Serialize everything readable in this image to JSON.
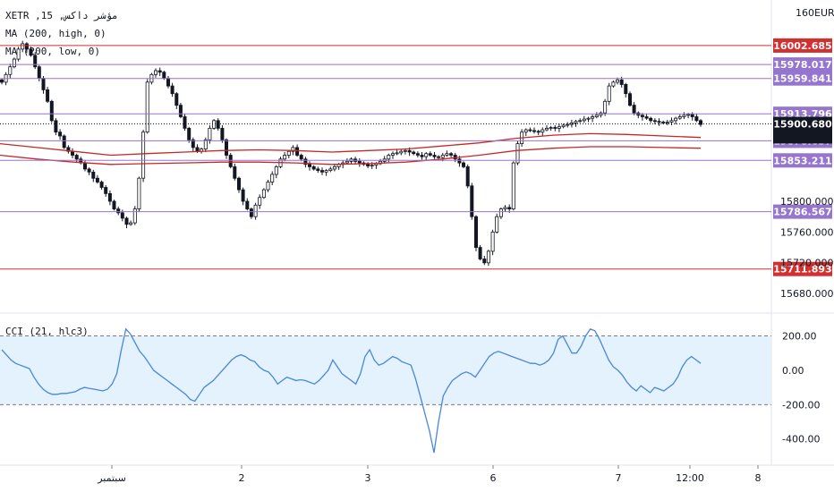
{
  "legend": {
    "symbol_line": "XETR ,15 ,مؤشر داكس",
    "ma_high_line": "MA (200, high, 0)",
    "ma_low_line": "MA (200, low, 0)",
    "cci_line": "CCI (21, hlc3)"
  },
  "currency": "EUR",
  "top_partial_tick": "160",
  "colors": {
    "red_level": "#d32f2f",
    "purple_level": "#9575cd",
    "candle": "#131722",
    "ma": "#c62828",
    "cci_line": "#4a86d8",
    "cci_fill": "#e3f2fd",
    "price_badge": "#131722"
  },
  "horizontal_levels": [
    {
      "value": "16002.685",
      "kind": "red"
    },
    {
      "value": "15978.017",
      "kind": "purple"
    },
    {
      "value": "15959.841",
      "kind": "purple"
    },
    {
      "value": "15913.796",
      "kind": "purple"
    },
    {
      "value": "15878.657",
      "kind": "purple"
    },
    {
      "value": "15853.211",
      "kind": "purple"
    },
    {
      "value": "15786.567",
      "kind": "purple"
    },
    {
      "value": "15711.893",
      "kind": "red"
    }
  ],
  "current_price": {
    "value": "15900.680",
    "countdown": "11:17"
  },
  "price_axis_ticks": [
    "15800.000",
    "15760.000",
    "15720.000",
    "15680.000"
  ],
  "cci_axis_ticks": [
    "200.00",
    "0.00",
    "-200.00",
    "-400.00"
  ],
  "time_axis_ticks": [
    "سبتمبر",
    "2",
    "3",
    "6",
    "7",
    "12:00",
    "8"
  ],
  "chart_data": {
    "type": "candlestick",
    "price_axis": {
      "min": 15665,
      "max": 16020
    },
    "cci_axis": {
      "min": -490,
      "max": 260,
      "band_upper": 200,
      "band_lower": -200
    },
    "price_close_path": [
      15955,
      15965,
      15975,
      15985,
      15998,
      16005,
      15998,
      15990,
      15975,
      15960,
      15945,
      15930,
      15905,
      15890,
      15885,
      15870,
      15865,
      15860,
      15855,
      15850,
      15842,
      15838,
      15830,
      15825,
      15818,
      15810,
      15800,
      15790,
      15785,
      15778,
      15770,
      15772,
      15790,
      15830,
      15890,
      15955,
      15965,
      15970,
      15968,
      15960,
      15950,
      15940,
      15925,
      15910,
      15895,
      15880,
      15870,
      15865,
      15868,
      15880,
      15895,
      15905,
      15895,
      15880,
      15860,
      15845,
      15830,
      15815,
      15800,
      15790,
      15780,
      15795,
      15805,
      15815,
      15825,
      15835,
      15845,
      15855,
      15860,
      15865,
      15870,
      15860,
      15855,
      15848,
      15845,
      15842,
      15840,
      15838,
      15840,
      15842,
      15845,
      15848,
      15850,
      15852,
      15855,
      15852,
      15850,
      15848,
      15846,
      15847,
      15849,
      15852,
      15855,
      15860,
      15862,
      15863,
      15865,
      15866,
      15864,
      15862,
      15860,
      15858,
      15862,
      15860,
      15858,
      15857,
      15860,
      15862,
      15860,
      15855,
      15850,
      15845,
      15820,
      15780,
      15740,
      15725,
      15720,
      15735,
      15760,
      15780,
      15790,
      15792,
      15790,
      15850,
      15875,
      15890,
      15893,
      15892,
      15891,
      15890,
      15893,
      15895,
      15896,
      15895,
      15897,
      15899,
      15900,
      15902,
      15904,
      15905,
      15907,
      15908,
      15910,
      15912,
      15915,
      15930,
      15950,
      15955,
      15958,
      15952,
      15940,
      15925,
      15915,
      15912,
      15910,
      15908,
      15905,
      15904,
      15903,
      15902,
      15903,
      15905,
      15908,
      15910,
      15912,
      15913,
      15910,
      15905,
      15900
    ],
    "ma_high_series": [
      15875,
      15870,
      15865,
      15860,
      15862,
      15864,
      15866,
      15867,
      15866,
      15864,
      15866,
      15868,
      15872,
      15876,
      15882,
      15886,
      15888,
      15887,
      15885,
      15883
    ],
    "ma_low_series": [
      15860,
      15855,
      15851,
      15848,
      15849,
      15850,
      15851,
      15851,
      15850,
      15848,
      15849,
      15851,
      15855,
      15860,
      15866,
      15869,
      15871,
      15871,
      15870,
      15869
    ],
    "cci_series": [
      120,
      90,
      60,
      40,
      30,
      20,
      10,
      -40,
      -80,
      -110,
      -130,
      -140,
      -140,
      -135,
      -135,
      -130,
      -125,
      -110,
      -100,
      -105,
      -110,
      -115,
      -120,
      -110,
      -80,
      -20,
      120,
      240,
      210,
      160,
      110,
      80,
      40,
      0,
      -20,
      -40,
      -60,
      -80,
      -100,
      -120,
      -140,
      -170,
      -180,
      -140,
      -100,
      -80,
      -60,
      -30,
      0,
      30,
      60,
      80,
      90,
      80,
      60,
      50,
      20,
      0,
      -10,
      -40,
      -80,
      -60,
      -40,
      -50,
      -60,
      -55,
      -60,
      -70,
      -80,
      -60,
      -30,
      0,
      60,
      20,
      -20,
      -40,
      -60,
      -80,
      -20,
      80,
      120,
      60,
      30,
      40,
      60,
      80,
      70,
      50,
      40,
      30,
      -50,
      -150,
      -250,
      -350,
      -480,
      -300,
      -150,
      -100,
      -60,
      -40,
      -20,
      -10,
      -20,
      -40,
      0,
      40,
      80,
      100,
      110,
      100,
      90,
      80,
      70,
      60,
      50,
      40,
      40,
      30,
      40,
      60,
      100,
      180,
      200,
      150,
      100,
      100,
      140,
      200,
      240,
      230,
      180,
      120,
      60,
      20,
      0,
      -30,
      -70,
      -100,
      -120,
      -90,
      -110,
      -130,
      -100,
      -110,
      -120,
      -100,
      -80,
      -40,
      20,
      60,
      80,
      60,
      40
    ]
  }
}
